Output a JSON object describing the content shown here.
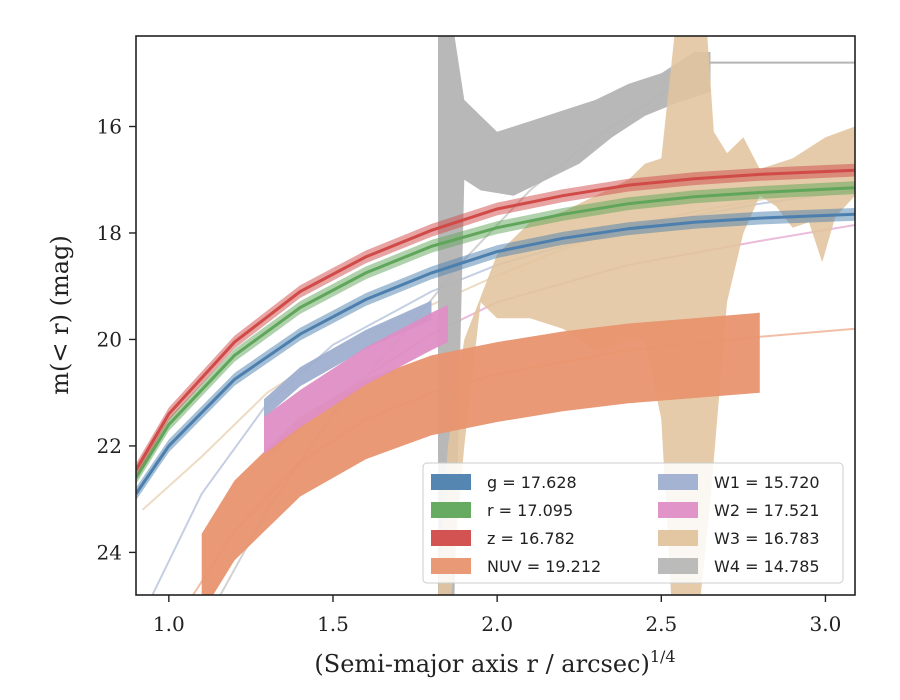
{
  "chart_data": {
    "type": "line",
    "title": "",
    "xlabel": "(Semi-major axis r / arcsec)",
    "xlabel_sup": "1/4",
    "ylabel": "m(< r) (mag)",
    "xlim": [
      0.9,
      3.09
    ],
    "ylim": [
      24.8,
      14.3
    ],
    "y_inverted": true,
    "grid": false,
    "legend_position": "lower right",
    "x_ticks": [
      "1.0",
      "1.5",
      "2.0",
      "2.5",
      "3.0"
    ],
    "y_ticks": [
      "16",
      "18",
      "20",
      "22",
      "24"
    ],
    "series": [
      {
        "name": "g = 17.628",
        "band": "g",
        "total_mag": "17.628",
        "color": "#4c7fae",
        "band_points": [
          [
            0.9,
            22.9
          ],
          [
            1.0,
            22.0
          ],
          [
            1.2,
            20.75
          ],
          [
            1.4,
            19.9
          ],
          [
            1.6,
            19.25
          ],
          [
            1.8,
            18.75
          ],
          [
            2.0,
            18.35
          ],
          [
            2.2,
            18.1
          ],
          [
            2.4,
            17.92
          ],
          [
            2.6,
            17.8
          ],
          [
            2.8,
            17.72
          ],
          [
            3.09,
            17.65
          ]
        ],
        "band_width": 0.12,
        "model": [
          [
            0.9,
            22.9
          ],
          [
            1.2,
            20.75
          ],
          [
            1.6,
            19.25
          ],
          [
            2.0,
            18.35
          ],
          [
            2.4,
            17.92
          ],
          [
            3.09,
            17.65
          ]
        ]
      },
      {
        "name": "r = 17.095",
        "band": "r",
        "total_mag": "17.095",
        "color": "#5fa55a",
        "band_points": [
          [
            0.9,
            22.6
          ],
          [
            1.0,
            21.6
          ],
          [
            1.2,
            20.3
          ],
          [
            1.4,
            19.4
          ],
          [
            1.6,
            18.75
          ],
          [
            1.8,
            18.25
          ],
          [
            2.0,
            17.9
          ],
          [
            2.2,
            17.65
          ],
          [
            2.4,
            17.45
          ],
          [
            2.6,
            17.32
          ],
          [
            2.8,
            17.24
          ],
          [
            3.09,
            17.15
          ]
        ],
        "band_width": 0.12,
        "model": [
          [
            0.9,
            22.6
          ],
          [
            1.2,
            20.3
          ],
          [
            1.6,
            18.75
          ],
          [
            2.0,
            17.9
          ],
          [
            2.4,
            17.45
          ],
          [
            3.09,
            17.15
          ]
        ]
      },
      {
        "name": "z = 16.782",
        "band": "z",
        "total_mag": "16.782",
        "color": "#d04a48",
        "band_points": [
          [
            0.9,
            22.45
          ],
          [
            1.0,
            21.4
          ],
          [
            1.2,
            20.05
          ],
          [
            1.4,
            19.1
          ],
          [
            1.6,
            18.45
          ],
          [
            1.8,
            17.95
          ],
          [
            2.0,
            17.55
          ],
          [
            2.2,
            17.3
          ],
          [
            2.4,
            17.1
          ],
          [
            2.6,
            16.98
          ],
          [
            2.8,
            16.9
          ],
          [
            3.09,
            16.82
          ]
        ],
        "band_width": 0.12,
        "model": [
          [
            0.9,
            22.45
          ],
          [
            1.2,
            20.05
          ],
          [
            1.6,
            18.45
          ],
          [
            2.0,
            17.55
          ],
          [
            2.4,
            17.1
          ],
          [
            3.09,
            16.82
          ]
        ]
      },
      {
        "name": "NUV = 19.212",
        "band": "NUV",
        "total_mag": "19.212",
        "color": "#e8946e",
        "band_points": [
          [
            1.1,
            24.4
          ],
          [
            1.2,
            23.4
          ],
          [
            1.4,
            22.2
          ],
          [
            1.6,
            21.5
          ],
          [
            1.8,
            21.05
          ],
          [
            2.0,
            20.8
          ],
          [
            2.2,
            20.6
          ],
          [
            2.4,
            20.45
          ],
          [
            2.6,
            20.35
          ],
          [
            2.8,
            20.25
          ]
        ],
        "band_width": 0.75,
        "model": [
          [
            1.0,
            25.5
          ],
          [
            1.2,
            23.6
          ],
          [
            1.4,
            22.3
          ],
          [
            1.6,
            21.5
          ],
          [
            1.8,
            21.0
          ],
          [
            2.0,
            20.65
          ],
          [
            2.4,
            20.2
          ],
          [
            2.8,
            19.95
          ],
          [
            3.09,
            19.8
          ]
        ]
      },
      {
        "name": "W1 = 15.720",
        "band": "W1",
        "total_mag": "15.720",
        "color": "#9fafd0",
        "band_points": [
          [
            1.29,
            21.3
          ],
          [
            1.4,
            20.7
          ],
          [
            1.6,
            20.0
          ],
          [
            1.8,
            19.45
          ]
        ],
        "band_width": 0.18,
        "model": [
          [
            0.95,
            24.8
          ],
          [
            1.1,
            22.9
          ],
          [
            1.3,
            21.2
          ],
          [
            1.5,
            20.1
          ],
          [
            1.8,
            19.1
          ],
          [
            2.0,
            18.6
          ],
          [
            2.4,
            17.9
          ],
          [
            2.8,
            17.45
          ],
          [
            3.09,
            17.2
          ]
        ]
      },
      {
        "name": "W2 = 17.521",
        "band": "W2",
        "total_mag": "17.521",
        "color": "#de8ec4",
        "band_points": [
          [
            1.29,
            21.8
          ],
          [
            1.4,
            21.3
          ],
          [
            1.6,
            20.5
          ],
          [
            1.8,
            19.85
          ],
          [
            1.85,
            19.7
          ]
        ],
        "band_width": 0.35,
        "model": [
          [
            1.3,
            22.2
          ],
          [
            1.5,
            21.1
          ],
          [
            1.8,
            19.9
          ],
          [
            2.0,
            19.3
          ],
          [
            2.4,
            18.6
          ],
          [
            2.8,
            18.15
          ],
          [
            3.09,
            17.85
          ]
        ]
      },
      {
        "name": "W3 = 16.783",
        "band": "W3",
        "total_mag": "16.783",
        "color": "#e1c49d",
        "upper": [
          [
            1.82,
            24.8
          ],
          [
            1.85,
            22.0
          ],
          [
            1.9,
            20.0
          ],
          [
            2.0,
            18.4
          ],
          [
            2.1,
            17.8
          ],
          [
            2.2,
            17.6
          ],
          [
            2.3,
            17.3
          ],
          [
            2.4,
            17.0
          ],
          [
            2.45,
            16.7
          ],
          [
            2.5,
            16.6
          ],
          [
            2.54,
            14.3
          ],
          [
            2.64,
            14.3
          ],
          [
            2.66,
            16.1
          ],
          [
            2.7,
            16.5
          ],
          [
            2.75,
            16.2
          ],
          [
            2.8,
            16.8
          ],
          [
            2.9,
            16.6
          ],
          [
            3.0,
            16.2
          ],
          [
            3.09,
            16.0
          ]
        ],
        "lower": [
          [
            3.09,
            17.3
          ],
          [
            3.03,
            17.7
          ],
          [
            2.99,
            18.55
          ],
          [
            2.95,
            17.8
          ],
          [
            2.9,
            17.9
          ],
          [
            2.85,
            17.5
          ],
          [
            2.8,
            17.3
          ],
          [
            2.75,
            18.0
          ],
          [
            2.7,
            19.3
          ],
          [
            2.65,
            23.0
          ],
          [
            2.62,
            24.8
          ],
          [
            2.53,
            24.8
          ],
          [
            2.5,
            21.5
          ],
          [
            2.45,
            20.0
          ],
          [
            2.4,
            20.0
          ],
          [
            2.35,
            20.15
          ],
          [
            2.3,
            20.2
          ],
          [
            2.2,
            19.8
          ],
          [
            2.1,
            19.6
          ],
          [
            2.0,
            19.6
          ],
          [
            1.95,
            19.3
          ],
          [
            1.9,
            22.0
          ],
          [
            1.86,
            24.8
          ]
        ],
        "model": [
          [
            0.92,
            23.2
          ],
          [
            1.1,
            22.2
          ],
          [
            1.3,
            21.0
          ],
          [
            1.5,
            20.2
          ],
          [
            1.8,
            19.35
          ],
          [
            2.0,
            18.8
          ],
          [
            2.2,
            18.3
          ],
          [
            2.4,
            17.9
          ],
          [
            2.6,
            17.6
          ],
          [
            2.87,
            17.3
          ]
        ]
      },
      {
        "name": "W4 = 14.785",
        "band": "W4",
        "total_mag": "14.785",
        "color": "#b4b4b4",
        "upper": [
          [
            1.82,
            14.3
          ],
          [
            1.87,
            14.3
          ],
          [
            1.9,
            15.5
          ],
          [
            1.95,
            15.8
          ],
          [
            2.0,
            16.1
          ],
          [
            2.1,
            15.9
          ],
          [
            2.2,
            15.7
          ],
          [
            2.3,
            15.5
          ],
          [
            2.4,
            15.2
          ],
          [
            2.5,
            15.0
          ],
          [
            2.6,
            14.6
          ],
          [
            2.65,
            14.6
          ]
        ],
        "lower": [
          [
            2.65,
            15.35
          ],
          [
            2.55,
            15.55
          ],
          [
            2.45,
            15.8
          ],
          [
            2.35,
            16.2
          ],
          [
            2.25,
            16.7
          ],
          [
            2.15,
            17.0
          ],
          [
            2.05,
            17.3
          ],
          [
            1.95,
            17.2
          ],
          [
            1.9,
            17.0
          ],
          [
            1.87,
            24.8
          ],
          [
            1.82,
            24.8
          ]
        ],
        "model": [
          [
            1.05,
            26.0
          ],
          [
            1.3,
            23.2
          ],
          [
            1.5,
            21.4
          ],
          [
            1.7,
            20.0
          ],
          [
            1.9,
            18.5
          ],
          [
            2.1,
            17.2
          ],
          [
            2.3,
            16.2
          ],
          [
            2.5,
            15.4
          ],
          [
            2.65,
            14.8
          ]
        ],
        "asymptote": [
          [
            2.65,
            14.8
          ],
          [
            3.09,
            14.8
          ]
        ]
      }
    ]
  }
}
